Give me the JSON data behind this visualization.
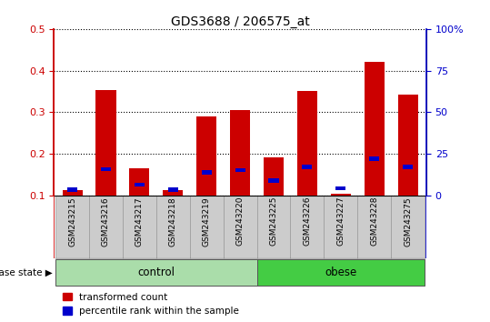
{
  "title": "GDS3688 / 206575_at",
  "categories": [
    "GSM243215",
    "GSM243216",
    "GSM243217",
    "GSM243218",
    "GSM243219",
    "GSM243220",
    "GSM243225",
    "GSM243226",
    "GSM243227",
    "GSM243228",
    "GSM243275"
  ],
  "red_values": [
    0.113,
    0.352,
    0.165,
    0.112,
    0.29,
    0.305,
    0.192,
    0.35,
    0.103,
    0.42,
    0.342
  ],
  "blue_values": [
    0.113,
    0.163,
    0.125,
    0.113,
    0.155,
    0.16,
    0.135,
    0.168,
    0.117,
    0.188,
    0.168
  ],
  "ylim_left": [
    0.1,
    0.5
  ],
  "ylim_right": [
    0,
    100
  ],
  "yticks_left": [
    0.1,
    0.2,
    0.3,
    0.4,
    0.5
  ],
  "yticks_right": [
    0,
    25,
    50,
    75,
    100
  ],
  "ytick_labels_right": [
    "0",
    "25",
    "50",
    "75",
    "100%"
  ],
  "control_n": 6,
  "obese_n": 5,
  "control_color": "#aaddaa",
  "obese_color": "#44cc44",
  "bar_color": "#CC0000",
  "blue_color": "#0000CC",
  "axis_color_left": "#CC0000",
  "axis_color_right": "#0000CC",
  "plot_bg": "#ffffff",
  "bar_width": 0.6,
  "legend_red": "transformed count",
  "legend_blue": "percentile rank within the sample",
  "disease_label": "disease state",
  "control_label": "control",
  "obese_label": "obese",
  "gray_box_color": "#cccccc",
  "gray_box_edge": "#999999"
}
